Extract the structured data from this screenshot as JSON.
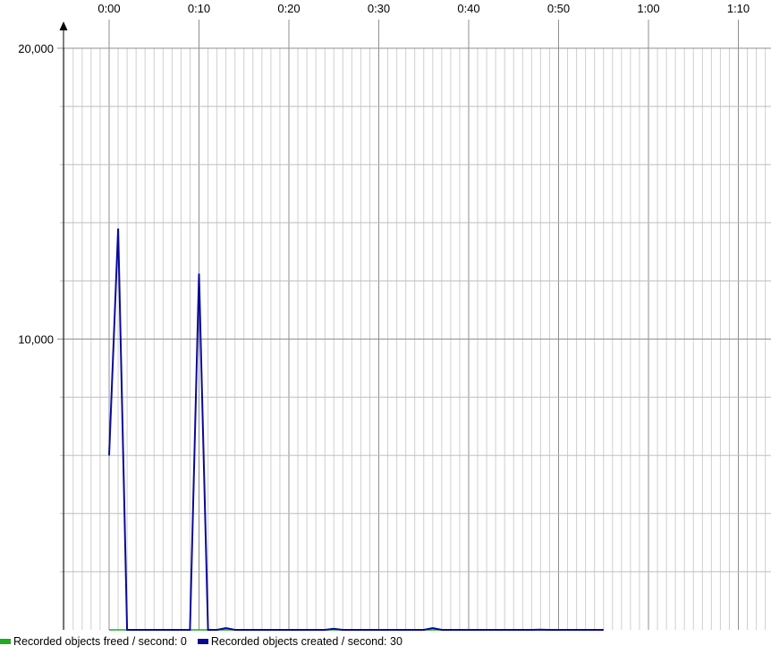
{
  "chart_data": {
    "type": "line",
    "title": "",
    "xlabel": "",
    "ylabel": "",
    "x_unit": "seconds",
    "xlim": [
      -5,
      73
    ],
    "ylim": [
      0,
      20000
    ],
    "x_ticks": [
      {
        "value": 0,
        "label": "0:00"
      },
      {
        "value": 10,
        "label": "0:10"
      },
      {
        "value": 20,
        "label": "0:20"
      },
      {
        "value": 30,
        "label": "0:30"
      },
      {
        "value": 40,
        "label": "0:40"
      },
      {
        "value": 50,
        "label": "0:50"
      },
      {
        "value": 60,
        "label": "1:00"
      },
      {
        "value": 70,
        "label": "1:10"
      }
    ],
    "x_minor_step": 1,
    "y_ticks": [
      {
        "value": 10000,
        "label": "10,000"
      },
      {
        "value": 20000,
        "label": "20,000"
      }
    ],
    "y_minor_step": 2000,
    "grid": true,
    "legend_position": "bottom-left",
    "series": [
      {
        "name": "Recorded objects freed / second: 0",
        "color": "#22aa22",
        "x": [
          0,
          55
        ],
        "y": [
          0,
          0
        ]
      },
      {
        "name": "Recorded objects created / second: 30",
        "color": "#0a0a9a",
        "x": [
          0,
          1,
          2,
          3,
          4,
          5,
          6,
          7,
          8,
          9,
          10,
          11,
          12,
          13,
          14,
          15,
          16,
          17,
          18,
          19,
          20,
          21,
          22,
          23,
          24,
          25,
          26,
          27,
          28,
          29,
          30,
          31,
          32,
          33,
          34,
          35,
          36,
          37,
          38,
          39,
          40,
          41,
          42,
          43,
          44,
          45,
          46,
          47,
          48,
          49,
          50,
          51,
          52,
          53,
          54,
          55
        ],
        "y": [
          6000,
          13800,
          0,
          0,
          0,
          0,
          0,
          0,
          0,
          0,
          12250,
          0,
          0,
          60,
          0,
          0,
          0,
          0,
          0,
          0,
          0,
          0,
          0,
          0,
          0,
          40,
          0,
          0,
          0,
          0,
          0,
          0,
          0,
          0,
          0,
          0,
          60,
          0,
          0,
          0,
          0,
          0,
          0,
          0,
          0,
          0,
          0,
          0,
          10,
          0,
          0,
          0,
          0,
          0,
          0,
          0
        ]
      }
    ]
  }
}
